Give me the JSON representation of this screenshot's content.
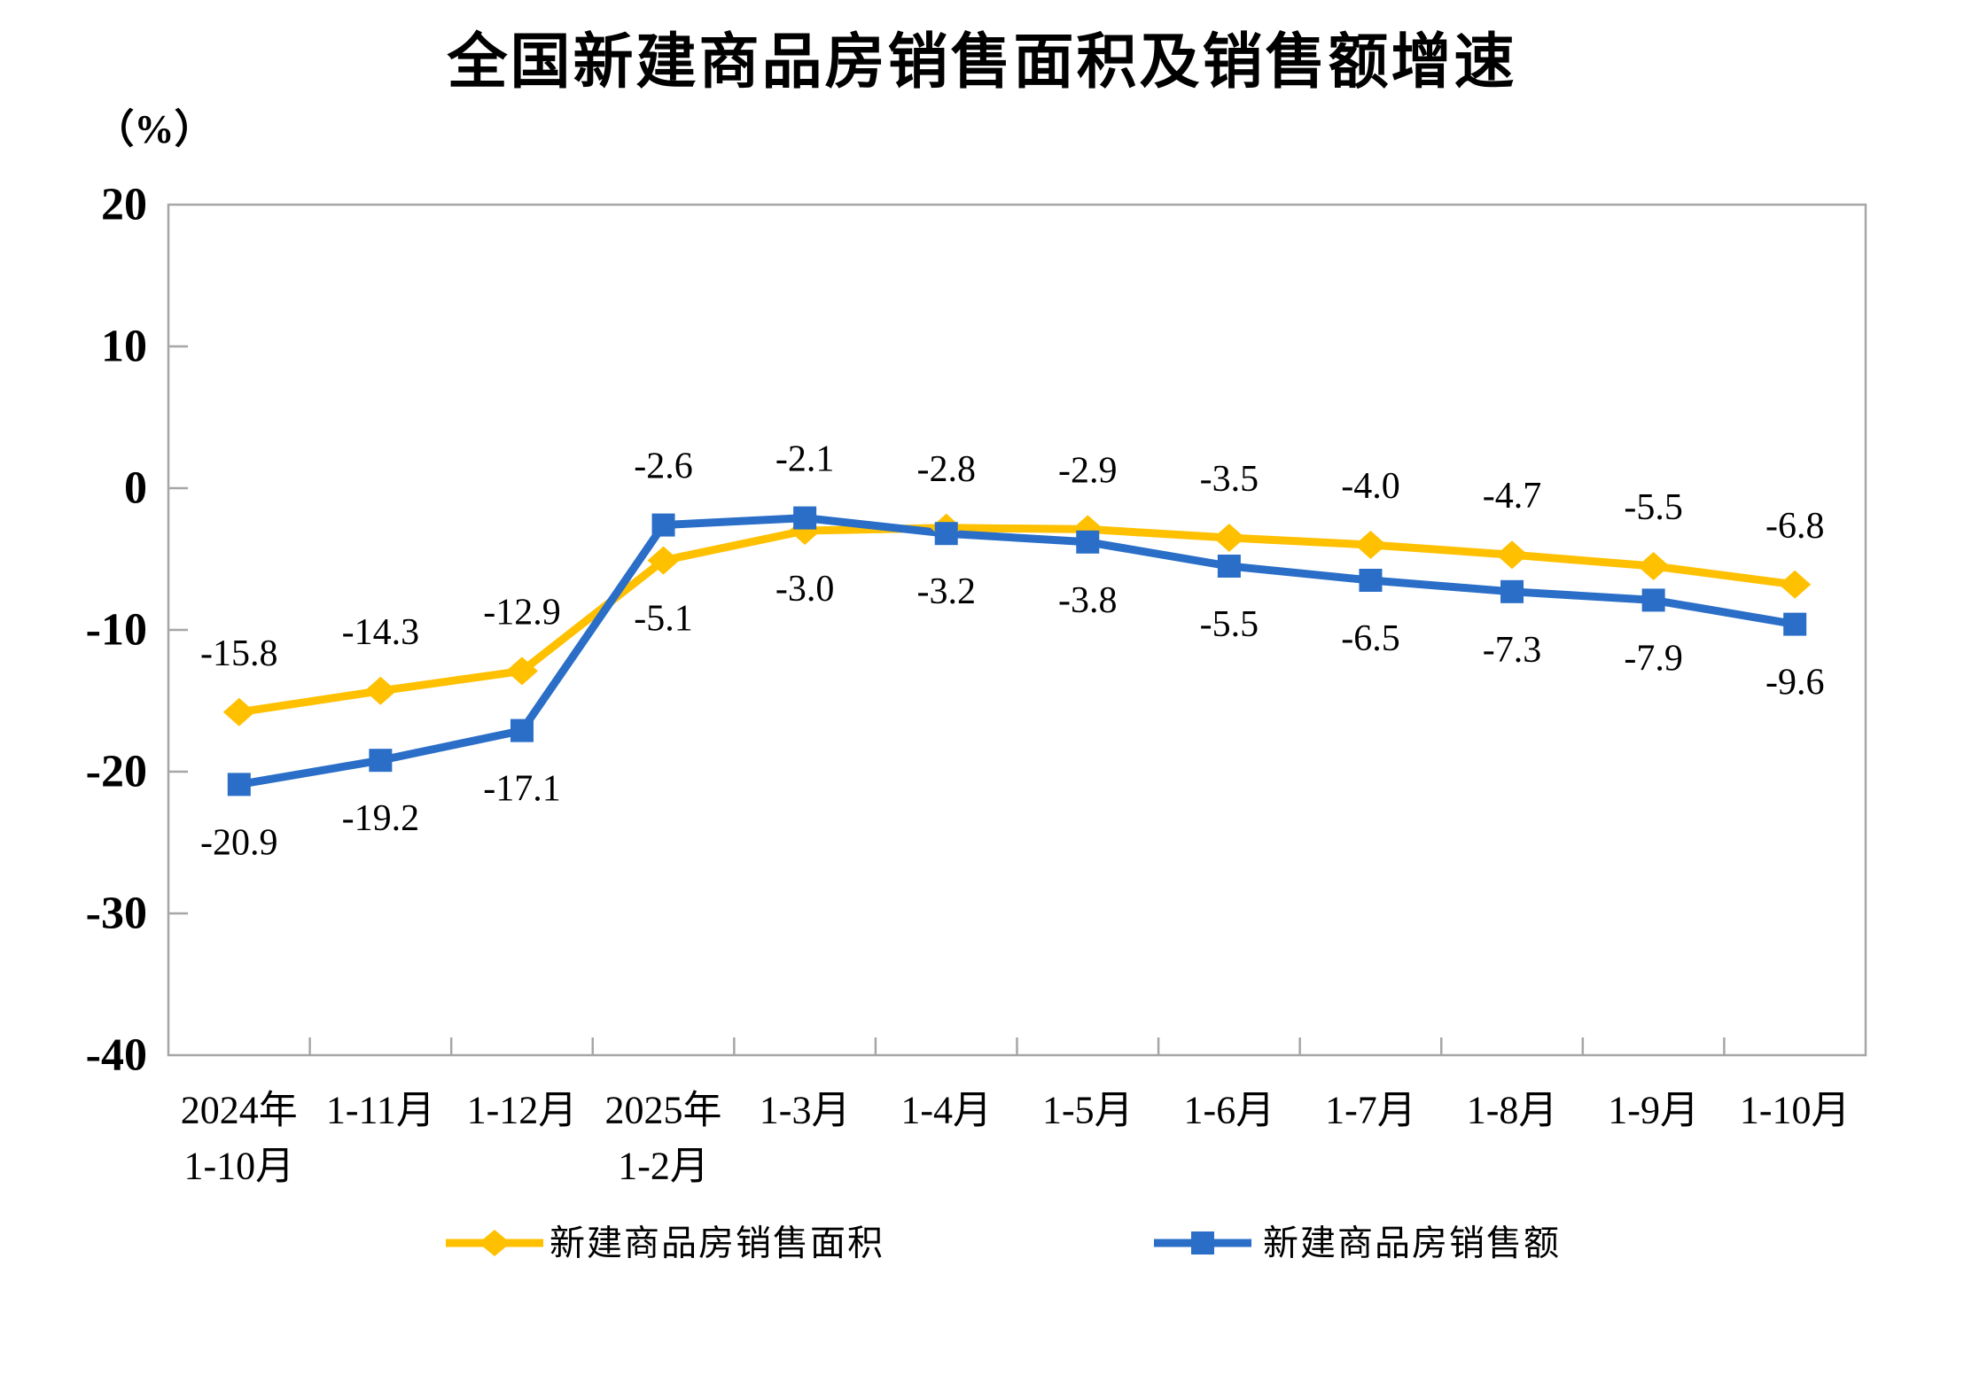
{
  "chart": {
    "title": "全国新建商品房销售面积及销售额增速",
    "unit_label": "（%）"
  },
  "chart_data": {
    "type": "line",
    "title": "全国新建商品房销售面积及销售额增速",
    "xlabel": "",
    "ylabel": "（%）",
    "ylim": [
      -40,
      20
    ],
    "yticks": [
      20,
      10,
      0,
      -10,
      -20,
      -30,
      -40
    ],
    "grid": false,
    "legend_position": "bottom",
    "axis_color": "#A6A6A6",
    "label_color": "#000000",
    "categories": [
      [
        "2024年",
        "1-10月"
      ],
      [
        "1-11月"
      ],
      [
        "1-12月"
      ],
      [
        "2025年",
        "1-2月"
      ],
      [
        "1-3月"
      ],
      [
        "1-4月"
      ],
      [
        "1-5月"
      ],
      [
        "1-6月"
      ],
      [
        "1-7月"
      ],
      [
        "1-8月"
      ],
      [
        "1-9月"
      ],
      [
        "1-10月"
      ]
    ],
    "series": [
      {
        "name": "新建商品房销售面积",
        "color": "#FFC000",
        "marker": "diamond",
        "values": [
          -15.8,
          -14.3,
          -12.9,
          -5.1,
          -3.0,
          -2.8,
          -2.9,
          -3.5,
          -4.0,
          -4.7,
          -5.5,
          -6.8
        ]
      },
      {
        "name": "新建商品房销售额",
        "color": "#2A6EC7",
        "marker": "square",
        "values": [
          -20.9,
          -19.2,
          -17.1,
          -2.6,
          -2.1,
          -3.2,
          -3.8,
          -5.5,
          -6.5,
          -7.3,
          -7.9,
          -9.6
        ]
      }
    ]
  }
}
